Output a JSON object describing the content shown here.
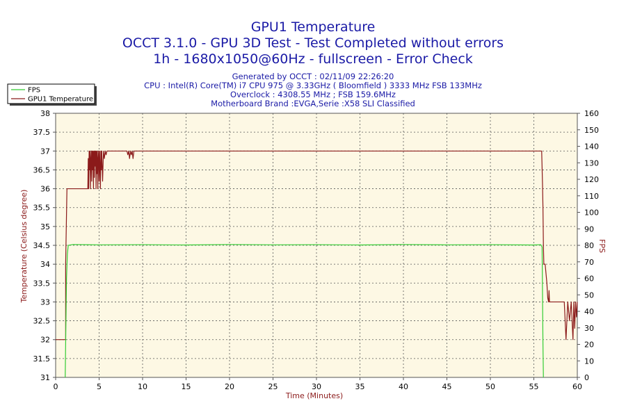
{
  "chart_data": {
    "type": "line",
    "title": "GPU1 Temperature",
    "subtitle_lines": [
      "OCCT 3.1.0 - GPU 3D Test - Test Completed without errors",
      "1h - 1680x1050@60Hz - fullscreen - Error Check"
    ],
    "info_lines": [
      "Generated by OCCT : 02/11/09 22:26:20",
      "CPU : Intel(R) Core(TM) i7 CPU 975 @ 3.33GHz ( Bloomfield ) 3333 MHz FSB 133MHz",
      "Overclock : 4308.55 MHz ; FSB 159.6MHz",
      "Motherboard Brand :EVGA,Serie :X58 SLI Classified"
    ],
    "xlabel": "Time (Minutes)",
    "ylabel_left": "Temperature (Celsius degree)",
    "ylabel_right": "FPS",
    "xlim": [
      0,
      60
    ],
    "ylim_left": [
      31,
      38
    ],
    "ylim_right": [
      0,
      160
    ],
    "x_ticks": [
      "0",
      "5",
      "10",
      "15",
      "20",
      "25",
      "30",
      "35",
      "40",
      "45",
      "50",
      "55",
      "60"
    ],
    "y_left_ticks": [
      "31",
      "31.5",
      "32",
      "32.5",
      "33",
      "33.5",
      "34",
      "34.5",
      "35",
      "35.5",
      "36",
      "36.5",
      "37",
      "37.5",
      "38"
    ],
    "y_right_ticks": [
      "0",
      "10",
      "20",
      "30",
      "40",
      "50",
      "60",
      "70",
      "80",
      "90",
      "100",
      "110",
      "120",
      "130",
      "140",
      "150",
      "160"
    ],
    "grid": true,
    "legend": {
      "position": "top-left",
      "entries": [
        "FPS",
        "GPU1 Temperature"
      ]
    },
    "colors": {
      "fps": "#33cc33",
      "temperature": "#8b1a1a",
      "plot_bg": "#fdf8e4",
      "title": "#1a1aa6"
    },
    "series": [
      {
        "name": "GPU1 Temperature",
        "axis": "left",
        "x": [
          0,
          1.15,
          1.15,
          1.3,
          1.3,
          3.7,
          3.75,
          3.8,
          3.85,
          3.9,
          3.95,
          4.0,
          4.05,
          4.1,
          4.15,
          4.2,
          4.25,
          4.3,
          4.35,
          4.4,
          4.45,
          4.5,
          4.55,
          4.6,
          4.65,
          4.7,
          4.75,
          4.8,
          4.85,
          4.9,
          4.95,
          5.0,
          5.05,
          5.1,
          5.15,
          5.2,
          5.25,
          5.3,
          5.4,
          5.5,
          5.6,
          5.7,
          5.8,
          5.9,
          6.0,
          8.2,
          8.3,
          8.4,
          8.5,
          8.6,
          8.7,
          8.8,
          8.9,
          9.0,
          55.9,
          56.0,
          56.05,
          56.1,
          56.15,
          56.3,
          56.5,
          56.6,
          56.7,
          56.75,
          56.8,
          57.0,
          58.5,
          58.7,
          58.9,
          59.1,
          59.3,
          59.5,
          59.6,
          59.7,
          59.8,
          59.9,
          60
        ],
        "values": [
          32,
          32,
          34,
          36,
          36,
          36,
          36.8,
          36,
          37,
          36.5,
          37,
          36,
          36.8,
          37,
          36.2,
          37,
          36.5,
          37,
          36,
          37,
          36.3,
          37,
          36.6,
          37,
          36,
          37,
          36.4,
          37,
          36,
          36.8,
          37,
          36.2,
          37,
          36.6,
          36,
          37,
          36.5,
          37,
          36.2,
          37,
          36.8,
          37,
          36.9,
          37,
          37,
          37,
          36.9,
          37,
          36.8,
          37,
          36.9,
          37,
          36.8,
          37,
          37,
          36.1,
          35.5,
          34.5,
          34,
          34,
          33.5,
          33.1,
          33,
          33.3,
          33,
          33,
          33,
          32,
          33,
          32.5,
          33,
          32,
          33,
          32.3,
          33,
          32.6,
          33
        ]
      },
      {
        "name": "FPS",
        "axis": "right",
        "x": [
          1.1,
          1.25,
          1.35,
          1.45,
          2,
          5,
          10,
          15,
          20,
          25,
          30,
          35,
          40,
          45,
          50,
          55,
          55.8,
          55.95,
          56.05,
          56.1
        ],
        "values": [
          0,
          60,
          75,
          80,
          80.5,
          80.3,
          80.4,
          80.2,
          80.5,
          80.3,
          80.4,
          80.2,
          80.5,
          80.3,
          80.4,
          80.2,
          80.4,
          79,
          20,
          0
        ]
      }
    ]
  }
}
